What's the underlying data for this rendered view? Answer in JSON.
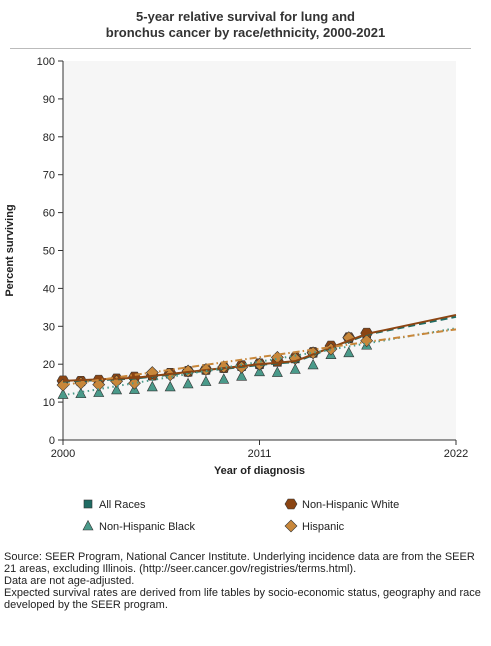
{
  "chart_data": {
    "type": "line",
    "title": "5-year relative survival for lung and bronchus cancer by race/ethnicity, 2000-2021",
    "title_lines": [
      "5-year relative survival for lung and",
      "bronchus cancer by race/ethnicity, 2000-2021"
    ],
    "xlabel": "Year of diagnosis",
    "ylabel": "Percent surviving",
    "xlim": [
      2000,
      2022
    ],
    "ylim": [
      0,
      100
    ],
    "x_ticks": [
      "2000",
      "2011",
      "2022"
    ],
    "y_ticks": [
      "0",
      "10",
      "20",
      "30",
      "40",
      "50",
      "60",
      "70",
      "80",
      "90",
      "100"
    ],
    "grid": false,
    "legend_placement": "bottom",
    "series": [
      {
        "name": "All Races",
        "marker": "square",
        "color": "#1f6b63",
        "x": [
          2000,
          2001,
          2002,
          2003,
          2004,
          2005,
          2006,
          2007,
          2008,
          2009,
          2010,
          2011,
          2012,
          2013,
          2014,
          2015,
          2016,
          2017
        ],
        "values": [
          15.5,
          15.4,
          15.6,
          15.9,
          16.4,
          16.9,
          17.4,
          17.9,
          18.4,
          18.9,
          19.4,
          19.9,
          20.5,
          21.4,
          22.9,
          24.5,
          26.8,
          28.0
        ],
        "trend_x": [
          2000,
          2004,
          2011,
          2013,
          2017,
          2022
        ],
        "trend": [
          15.4,
          16.2,
          19.8,
          20.6,
          27.8,
          32.5
        ],
        "trend_style": "dashed"
      },
      {
        "name": "Non-Hispanic White",
        "marker": "circle",
        "color": "#8b4513",
        "x": [
          2000,
          2001,
          2002,
          2003,
          2004,
          2005,
          2006,
          2007,
          2008,
          2009,
          2010,
          2011,
          2012,
          2013,
          2014,
          2015,
          2016,
          2017
        ],
        "values": [
          15.6,
          15.5,
          15.8,
          16.1,
          16.6,
          17.1,
          17.6,
          18.1,
          18.6,
          19.1,
          19.6,
          20.1,
          20.8,
          21.7,
          23.1,
          24.8,
          27.0,
          28.2
        ],
        "trend_x": [
          2000,
          2004,
          2011,
          2013,
          2017,
          2022
        ],
        "trend": [
          15.6,
          16.4,
          20.0,
          20.8,
          28.0,
          33.0
        ],
        "trend_style": "solid"
      },
      {
        "name": "Non-Hispanic Black",
        "marker": "triangle",
        "color": "#4a9a8a",
        "x": [
          2000,
          2001,
          2002,
          2003,
          2004,
          2005,
          2006,
          2007,
          2008,
          2009,
          2010,
          2011,
          2012,
          2013,
          2014,
          2015,
          2016,
          2017
        ],
        "values": [
          12.0,
          12.2,
          12.5,
          13.2,
          13.3,
          14.0,
          14.0,
          14.8,
          15.4,
          16.0,
          16.8,
          18.0,
          17.8,
          18.6,
          19.8,
          22.5,
          23.0,
          25.0
        ],
        "trend_x": [
          2000,
          2022
        ],
        "trend": [
          11.8,
          29.5
        ],
        "trend_style": "dotted"
      },
      {
        "name": "Hispanic",
        "marker": "diamond",
        "color": "#c8873a",
        "x": [
          2000,
          2001,
          2002,
          2003,
          2004,
          2005,
          2006,
          2007,
          2008,
          2009,
          2010,
          2011,
          2012,
          2013,
          2014,
          2015,
          2016,
          2017
        ],
        "values": [
          14.5,
          15.0,
          14.6,
          15.5,
          15.0,
          17.8,
          17.2,
          18.2,
          18.6,
          19.3,
          19.2,
          20.0,
          21.8,
          21.5,
          23.0,
          24.0,
          27.0,
          26.2
        ],
        "trend_x": [
          2000,
          2022
        ],
        "trend": [
          14.5,
          29.2
        ],
        "trend_style": "dashdot"
      }
    ]
  },
  "source": {
    "line1": "Source: SEER Program, National Cancer Institute. Underlying incidence data are from the SEER 21 areas, excluding Illinois. (http://seer.cancer.gov/registries/terms.html).",
    "line2": "Data are not age-adjusted.",
    "line3": "Expected survival rates are derived from life tables by socio-economic status, geography and race developed by the SEER program."
  }
}
